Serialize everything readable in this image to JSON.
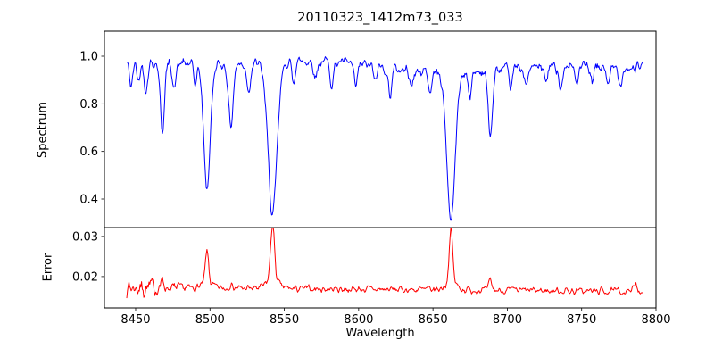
{
  "chart_data": {
    "type": "line",
    "title": "20110323_1412m73_033",
    "xlabel": "Wavelength",
    "background": "#ffffff",
    "xlim": [
      8429,
      8800
    ],
    "x_ticks": [
      8450,
      8500,
      8550,
      8600,
      8650,
      8700,
      8750,
      8800
    ],
    "panels": [
      {
        "ylabel": "Spectrum",
        "color": "#0000ff",
        "ylim": [
          0.28,
          1.105
        ],
        "y_ticks": [
          0.4,
          0.6,
          0.8,
          1.0
        ],
        "x_range": [
          8444,
          8791
        ],
        "seed": 42,
        "continuum": 0.958,
        "noise_amplitude": 0.034,
        "slow_variation": [
          {
            "amp": 0.018,
            "scale": 55,
            "phase": 0
          },
          {
            "amp": 0.012,
            "scale": 23,
            "phase": 1.3
          }
        ],
        "absorption_lines": [
          {
            "center": 8447.0,
            "depth": 0.1,
            "sigma": 1.1
          },
          {
            "center": 8452.0,
            "depth": 0.08,
            "sigma": 1.0
          },
          {
            "center": 8457.0,
            "depth": 0.12,
            "sigma": 1.1
          },
          {
            "center": 8468.0,
            "depth": 0.28,
            "sigma": 1.4
          },
          {
            "center": 8476.0,
            "depth": 0.11,
            "sigma": 1.1
          },
          {
            "center": 8490.0,
            "depth": 0.08,
            "sigma": 1.0
          },
          {
            "center": 8498.0,
            "depth": 0.515,
            "sigma": 2.2
          },
          {
            "center": 8514.0,
            "depth": 0.26,
            "sigma": 1.5
          },
          {
            "center": 8526.0,
            "depth": 0.11,
            "sigma": 1.2
          },
          {
            "center": 8542.1,
            "depth": 0.635,
            "sigma": 3.0
          },
          {
            "center": 8556.0,
            "depth": 0.08,
            "sigma": 1.1
          },
          {
            "center": 8571.0,
            "depth": 0.07,
            "sigma": 1.1
          },
          {
            "center": 8582.0,
            "depth": 0.09,
            "sigma": 1.2
          },
          {
            "center": 8598.0,
            "depth": 0.1,
            "sigma": 1.2
          },
          {
            "center": 8611.0,
            "depth": 0.07,
            "sigma": 1.0
          },
          {
            "center": 8621.0,
            "depth": 0.11,
            "sigma": 1.2
          },
          {
            "center": 8636.0,
            "depth": 0.07,
            "sigma": 1.0
          },
          {
            "center": 8648.0,
            "depth": 0.09,
            "sigma": 1.0
          },
          {
            "center": 8662.1,
            "depth": 0.615,
            "sigma": 2.8
          },
          {
            "center": 8675.0,
            "depth": 0.1,
            "sigma": 1.1
          },
          {
            "center": 8688.6,
            "depth": 0.27,
            "sigma": 1.5
          },
          {
            "center": 8702.0,
            "depth": 0.08,
            "sigma": 1.1
          },
          {
            "center": 8713.0,
            "depth": 0.08,
            "sigma": 1.1
          },
          {
            "center": 8726.0,
            "depth": 0.07,
            "sigma": 1.0
          },
          {
            "center": 8736.0,
            "depth": 0.09,
            "sigma": 1.1
          },
          {
            "center": 8747.0,
            "depth": 0.08,
            "sigma": 1.0
          },
          {
            "center": 8757.0,
            "depth": 0.07,
            "sigma": 1.0
          },
          {
            "center": 8768.0,
            "depth": 0.08,
            "sigma": 1.0
          },
          {
            "center": 8776.0,
            "depth": 0.07,
            "sigma": 1.0
          }
        ]
      },
      {
        "ylabel": "Error",
        "color": "#ff0000",
        "ylim": [
          0.0122,
          0.0322
        ],
        "y_ticks": [
          0.02,
          0.03
        ],
        "x_range": [
          8444,
          8791
        ],
        "seed": 7,
        "baseline_start": 0.0173,
        "baseline_end": 0.0163,
        "noise_amplitude": 0.0013,
        "noise_boost": {
          "center": 8455,
          "factor": 1.8,
          "sigma": 12
        },
        "peaks": [
          {
            "center": 8468.0,
            "height": 0.0012,
            "sigma": 1.5
          },
          {
            "center": 8498.0,
            "height": 0.008,
            "sigma": 1.1
          },
          {
            "center": 8498.0,
            "height": 0.0012,
            "sigma": 3.5
          },
          {
            "center": 8514.0,
            "height": 0.001,
            "sigma": 1.2
          },
          {
            "center": 8542.1,
            "height": 0.0138,
            "sigma": 1.3
          },
          {
            "center": 8542.1,
            "height": 0.0022,
            "sigma": 4.0
          },
          {
            "center": 8662.1,
            "height": 0.013,
            "sigma": 1.2
          },
          {
            "center": 8662.1,
            "height": 0.0018,
            "sigma": 4.0
          },
          {
            "center": 8688.6,
            "height": 0.0024,
            "sigma": 1.0
          },
          {
            "center": 8786.0,
            "height": 0.0013,
            "sigma": 1.5
          }
        ]
      }
    ]
  }
}
